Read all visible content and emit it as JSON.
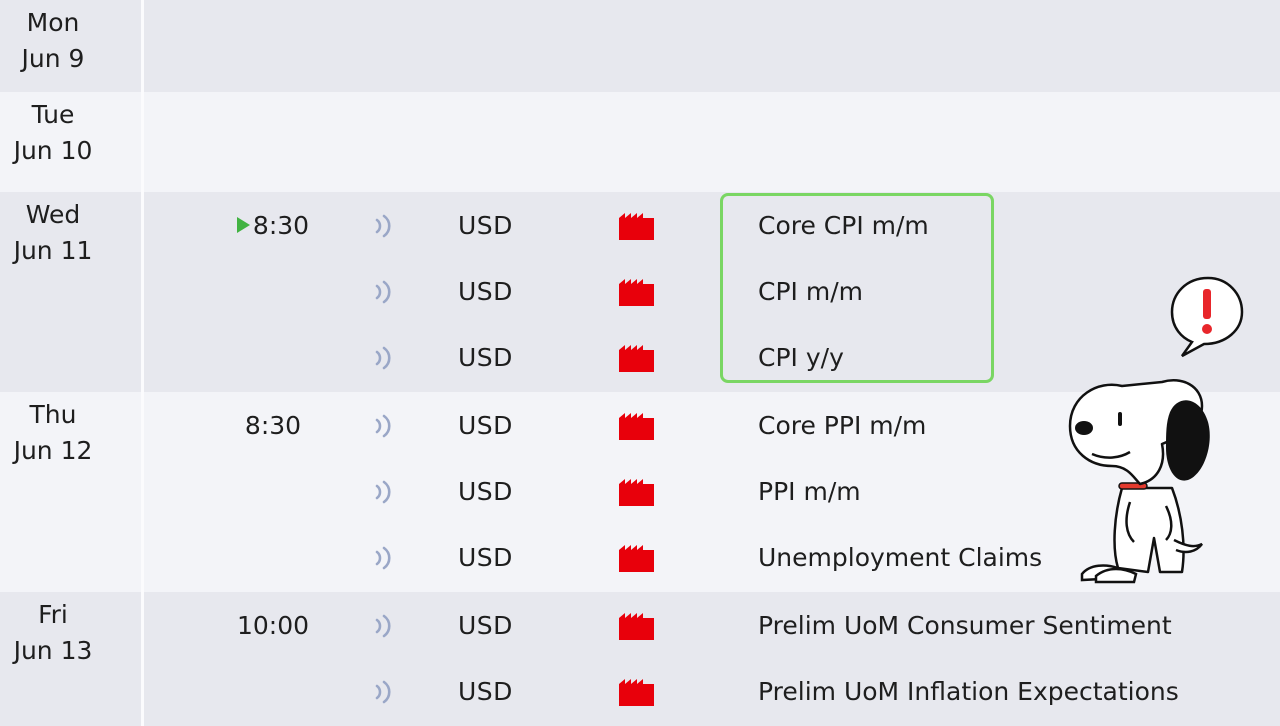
{
  "calendar": {
    "days": [
      {
        "day": "Mon",
        "date": "Jun 9",
        "events": []
      },
      {
        "day": "Tue",
        "date": "Jun 10",
        "events": []
      },
      {
        "day": "Wed",
        "date": "Jun 11",
        "events": [
          {
            "time": "8:30",
            "upcoming": true,
            "currency": "USD",
            "impact": "high",
            "name": "Core CPI m/m"
          },
          {
            "time": "",
            "currency": "USD",
            "impact": "high",
            "name": "CPI m/m"
          },
          {
            "time": "",
            "currency": "USD",
            "impact": "high",
            "name": "CPI y/y"
          }
        ]
      },
      {
        "day": "Thu",
        "date": "Jun 12",
        "events": [
          {
            "time": "8:30",
            "currency": "USD",
            "impact": "high",
            "name": "Core PPI m/m"
          },
          {
            "time": "",
            "currency": "USD",
            "impact": "high",
            "name": "PPI m/m"
          },
          {
            "time": "",
            "currency": "USD",
            "impact": "high",
            "name": "Unemployment Claims"
          }
        ]
      },
      {
        "day": "Fri",
        "date": "Jun 13",
        "events": [
          {
            "time": "10:00",
            "currency": "USD",
            "impact": "high",
            "name": "Prelim UoM Consumer Sentiment"
          },
          {
            "time": "",
            "currency": "USD",
            "impact": "high",
            "name": "Prelim UoM Inflation Expectations"
          }
        ]
      }
    ]
  },
  "colors": {
    "impact_high": "#e8000b",
    "highlight_border": "#7ad663",
    "upcoming_marker": "#42b342",
    "sound_icon": "#9aa7c7"
  },
  "icons": {
    "upcoming": "play-triangle-icon",
    "sound": "sound-wave-icon",
    "impact": "red-folder-impact-icon",
    "illustration": "snoopy-dog-illustration",
    "alert": "exclamation-speech-bubble-icon"
  }
}
